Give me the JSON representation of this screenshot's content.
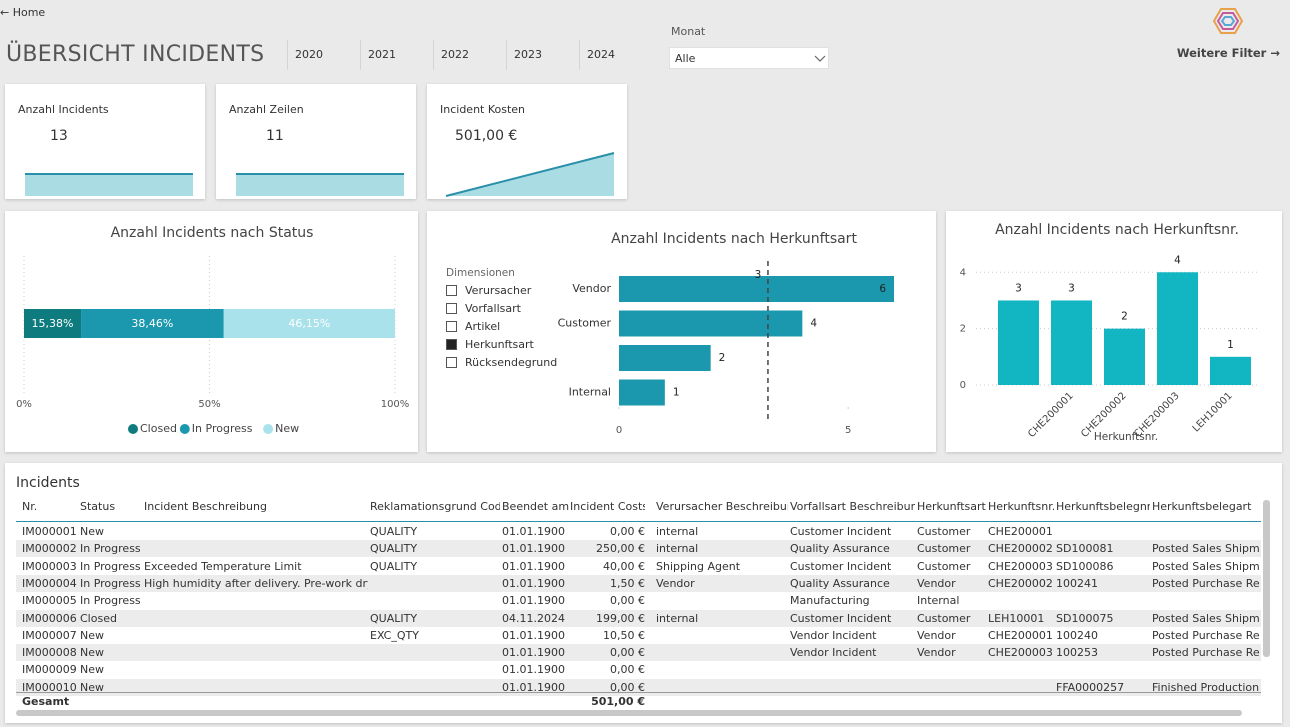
{
  "header": {
    "back": "← Home",
    "title": "ÜBERSICHT INCIDENTS",
    "years": [
      "2020",
      "2021",
      "2022",
      "2023",
      "2024"
    ],
    "month_label": "Monat",
    "month_value": "Alle",
    "more_filters": "Weitere Filter →"
  },
  "cards": [
    {
      "label": "Anzahl Incidents",
      "value": "13"
    },
    {
      "label": "Anzahl Zeilen",
      "value": "11"
    },
    {
      "label": "Incident Kosten",
      "value": "501,00 €"
    }
  ],
  "chart_data": [
    {
      "type": "stacked_bar_100",
      "title": "Anzahl Incidents nach Status",
      "categories": [
        null
      ],
      "series": [
        {
          "name": "Closed",
          "color": "#0e7c7f",
          "values": [
            15.38
          ],
          "value_labels": [
            "15,38%"
          ]
        },
        {
          "name": "In Progress",
          "color": "#1b98ae",
          "values": [
            38.46
          ],
          "value_labels": [
            "38,46%"
          ]
        },
        {
          "name": "New",
          "color": "#a9e2eb",
          "values": [
            46.15
          ],
          "value_labels": [
            "46,15%"
          ]
        }
      ],
      "xlim": [
        0,
        100
      ],
      "xticks": [
        {
          "value": 0,
          "label": "0%"
        },
        {
          "value": 50,
          "label": "50%"
        },
        {
          "value": 100,
          "label": "100%"
        }
      ],
      "grid": true,
      "legend": "bottom"
    },
    {
      "type": "hbar",
      "title": "Anzahl Incidents nach Herkunftsart",
      "categories": [
        "Vendor",
        "Customer",
        null,
        "Internal"
      ],
      "values": [
        6,
        4,
        2,
        1
      ],
      "color": "#1b98ae",
      "xlim": [
        0,
        6
      ],
      "xticks": [
        0,
        5
      ],
      "reference_line": {
        "value": 3.25,
        "label": "3"
      },
      "dimensions": {
        "title": "Dimensionen",
        "items": [
          "Verursacher",
          "Vorfallsart",
          "Artikel",
          "Herkunftsart",
          "Rücksendegrund"
        ],
        "selected": 3
      }
    },
    {
      "type": "bar",
      "title": "Anzahl Incidents nach Herkunftsnr.",
      "categories": [
        null,
        "CHE200001",
        "CHE200002",
        "CHE200003",
        "LEH10001"
      ],
      "values": [
        3,
        3,
        2,
        4,
        1
      ],
      "color": "#12b6c2",
      "ylim": [
        0,
        4.4
      ],
      "yticks": [
        0,
        2,
        4
      ],
      "grid": true,
      "xlabel": "Herkunftsnr."
    }
  ],
  "table": {
    "title": "Incidents",
    "columns": [
      "Nr.",
      "Status",
      "Incident Beschreibung",
      "Reklamationsgrund Code",
      "Beendet am",
      "Incident Costs _",
      "Verursacher Beschreibung",
      "Vorfallsart Beschreibung",
      "Herkunftsart",
      "Herkunftsnr.",
      "Herkunftsbelegnr.",
      "Herkunftsbelegart"
    ],
    "rows": [
      [
        "IM000001",
        "New",
        null,
        "QUALITY",
        "01.01.1900",
        "0,00 €",
        "internal",
        "Customer Incident",
        "Customer",
        "CHE200001",
        null,
        null
      ],
      [
        "IM000002",
        "In Progress",
        null,
        "QUALITY",
        "01.01.1900",
        "250,00 €",
        "internal",
        "Quality Assurance",
        "Customer",
        "CHE200002",
        "SD100081",
        "Posted Sales Shipment"
      ],
      [
        "IM000003",
        "In Progress",
        "Exceeded Temperature Limit",
        "QUALITY",
        "01.01.1900",
        "40,00 €",
        "Shipping Agent",
        "Customer Incident",
        "Customer",
        "CHE200003",
        "SD100086",
        "Posted Sales Shipment"
      ],
      [
        "IM000004",
        "In Progress",
        "High humidity after delivery. Pre-work drying",
        null,
        "01.01.1900",
        "1,50 €",
        "Vendor",
        "Quality Assurance",
        "Vendor",
        "CHE200002",
        "100241",
        "Posted Purchase Receip"
      ],
      [
        "IM000005",
        "In Progress",
        null,
        null,
        "01.01.1900",
        "0,00 €",
        null,
        "Manufacturing",
        "Internal",
        null,
        null,
        null
      ],
      [
        "IM000006",
        "Closed",
        null,
        "QUALITY",
        "04.11.2024",
        "199,00 €",
        "internal",
        "Customer Incident",
        "Customer",
        "LEH10001",
        "SD100075",
        "Posted Sales Shipment"
      ],
      [
        "IM000007",
        "New",
        null,
        "EXC_QTY",
        "01.01.1900",
        "10,50 €",
        null,
        "Vendor Incident",
        "Vendor",
        "CHE200001",
        "100240",
        "Posted Purchase Receip"
      ],
      [
        "IM000008",
        "New",
        null,
        null,
        "01.01.1900",
        "0,00 €",
        null,
        "Vendor Incident",
        "Vendor",
        "CHE200003",
        "100253",
        "Posted Purchase Receip"
      ],
      [
        "IM000009",
        "New",
        null,
        null,
        "01.01.1900",
        "0,00 €",
        null,
        null,
        null,
        null,
        null,
        null
      ],
      [
        "IM000010",
        "New",
        null,
        null,
        "01.01.1900",
        "0,00 €",
        null,
        null,
        null,
        null,
        "FFA0000257",
        "Finished Production Or"
      ]
    ],
    "total": {
      "label": "Gesamt",
      "costs": "501,00 €"
    }
  }
}
